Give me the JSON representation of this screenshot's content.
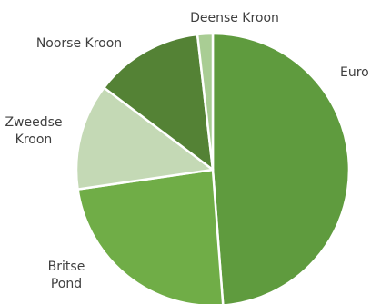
{
  "chart_data": {
    "type": "pie",
    "title": "",
    "categories": [
      "Euro",
      "Britse Pond",
      "Zweedse Kroon",
      "Noorse Kroon",
      "Deense Kroon"
    ],
    "values": [
      48.8,
      23.9,
      12.6,
      12.9,
      1.8
    ],
    "unit": "%",
    "start_angle_deg": 0,
    "direction": "clockwise",
    "legend": "none",
    "labels": [
      {
        "lines": [
          "Euro"
        ]
      },
      {
        "lines": [
          "Britse",
          "Pond"
        ]
      },
      {
        "lines": [
          "Zweedse",
          "Kroon"
        ]
      },
      {
        "lines": [
          "Noorse Kroon"
        ]
      },
      {
        "lines": [
          "Deense Kroon"
        ]
      }
    ],
    "colors": [
      "#5f9b3e",
      "#70ad47",
      "#c4d9b5",
      "#548235",
      "#a9cd94"
    ]
  }
}
